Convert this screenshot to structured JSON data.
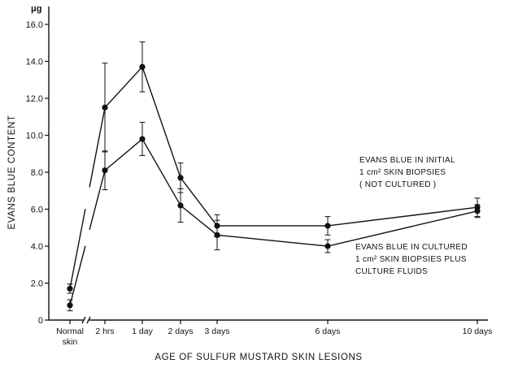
{
  "chart_data": {
    "type": "line",
    "xlabel": "AGE OF SULFUR MUSTARD SKIN LESIONS",
    "ylabel": "EVANS BLUE CONTENT",
    "yunit": "μg",
    "ylim": [
      0,
      16
    ],
    "yticks": [
      0,
      2.0,
      4.0,
      6.0,
      8.0,
      10.0,
      12.0,
      14.0,
      16.0
    ],
    "ytick_labels": [
      "0",
      "2.0",
      "4.0",
      "6.0",
      "8.0",
      "10.0",
      "12.0",
      "14.0",
      "16.0"
    ],
    "categories": [
      {
        "label": [
          "Normal",
          "skin"
        ]
      },
      {
        "label": [
          "2 hrs"
        ]
      },
      {
        "label": [
          "1 day"
        ]
      },
      {
        "label": [
          "2 days"
        ]
      },
      {
        "label": [
          "3 days"
        ]
      },
      {
        "label": [
          "6 days"
        ]
      },
      {
        "label": [
          "10 days"
        ]
      }
    ],
    "x_axis_break": "between Normal skin and 2 hrs",
    "series": [
      {
        "annotation": [
          "EVANS BLUE IN INITIAL",
          "1 cm² SKIN BIOPSIES",
          "( NOT CULTURED )"
        ],
        "values": [
          1.7,
          11.5,
          13.7,
          7.7,
          5.1,
          5.1,
          6.1
        ],
        "errors": [
          0.25,
          2.4,
          1.35,
          0.8,
          0.6,
          0.5,
          0.5
        ]
      },
      {
        "annotation": [
          "EVANS BLUE IN CULTURED",
          "1 cm² SKIN BIOPSIES PLUS",
          "CULTURE FLUIDS"
        ],
        "values": [
          0.8,
          8.1,
          9.8,
          6.2,
          4.6,
          4.0,
          5.9
        ],
        "errors": [
          0.3,
          1.05,
          0.9,
          0.9,
          0.8,
          0.35,
          0.35
        ]
      }
    ]
  }
}
